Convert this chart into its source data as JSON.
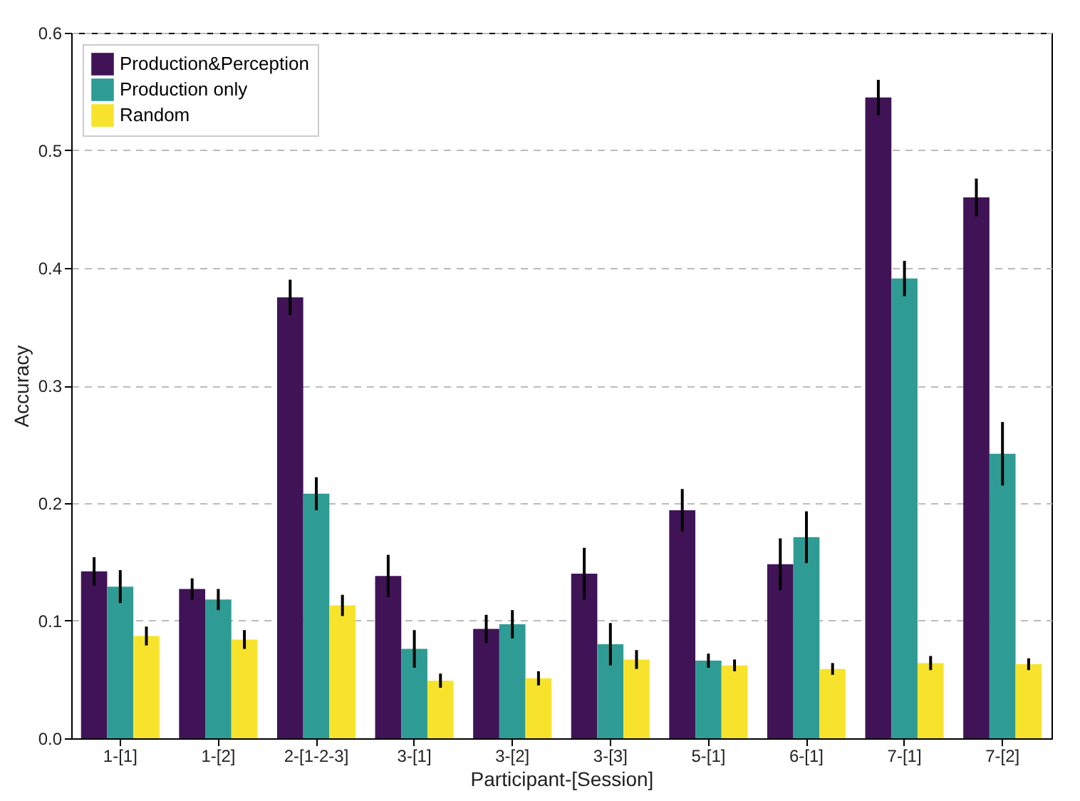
{
  "chart_data": {
    "type": "bar",
    "xlabel": "Participant-[Session]",
    "ylabel": "Accuracy",
    "categories": [
      "1-[1]",
      "1-[2]",
      "2-[1-2-3]",
      "3-[1]",
      "3-[2]",
      "3-[3]",
      "5-[1]",
      "6-[1]",
      "7-[1]",
      "7-[2]"
    ],
    "series": [
      {
        "name": "Production&Perception",
        "color": "#3f1356",
        "values": [
          0.142,
          0.127,
          0.375,
          0.138,
          0.093,
          0.14,
          0.194,
          0.148,
          0.545,
          0.46
        ],
        "errors": [
          0.012,
          0.009,
          0.015,
          0.018,
          0.012,
          0.022,
          0.018,
          0.022,
          0.015,
          0.016
        ]
      },
      {
        "name": "Production only",
        "color": "#2e9c94",
        "values": [
          0.129,
          0.118,
          0.208,
          0.076,
          0.097,
          0.08,
          0.066,
          0.171,
          0.391,
          0.242
        ],
        "errors": [
          0.014,
          0.009,
          0.014,
          0.016,
          0.012,
          0.018,
          0.006,
          0.022,
          0.015,
          0.027
        ]
      },
      {
        "name": "Random",
        "color": "#f7e32c",
        "values": [
          0.087,
          0.084,
          0.113,
          0.049,
          0.051,
          0.067,
          0.062,
          0.059,
          0.064,
          0.063
        ],
        "errors": [
          0.008,
          0.008,
          0.009,
          0.006,
          0.006,
          0.008,
          0.005,
          0.005,
          0.006,
          0.005
        ]
      }
    ],
    "ylim": [
      0,
      0.6
    ],
    "yticks": [
      {
        "value": 0,
        "label": "0.0"
      },
      {
        "value": 0.1,
        "label": "0.1"
      },
      {
        "value": 0.2,
        "label": "0.2"
      },
      {
        "value": 0.3,
        "label": "0.3"
      },
      {
        "value": 0.4,
        "label": "0.4"
      },
      {
        "value": 0.5,
        "label": "0.5"
      },
      {
        "value": 0.6,
        "label": "0.6"
      }
    ],
    "grid": "y",
    "legend": "top left"
  }
}
